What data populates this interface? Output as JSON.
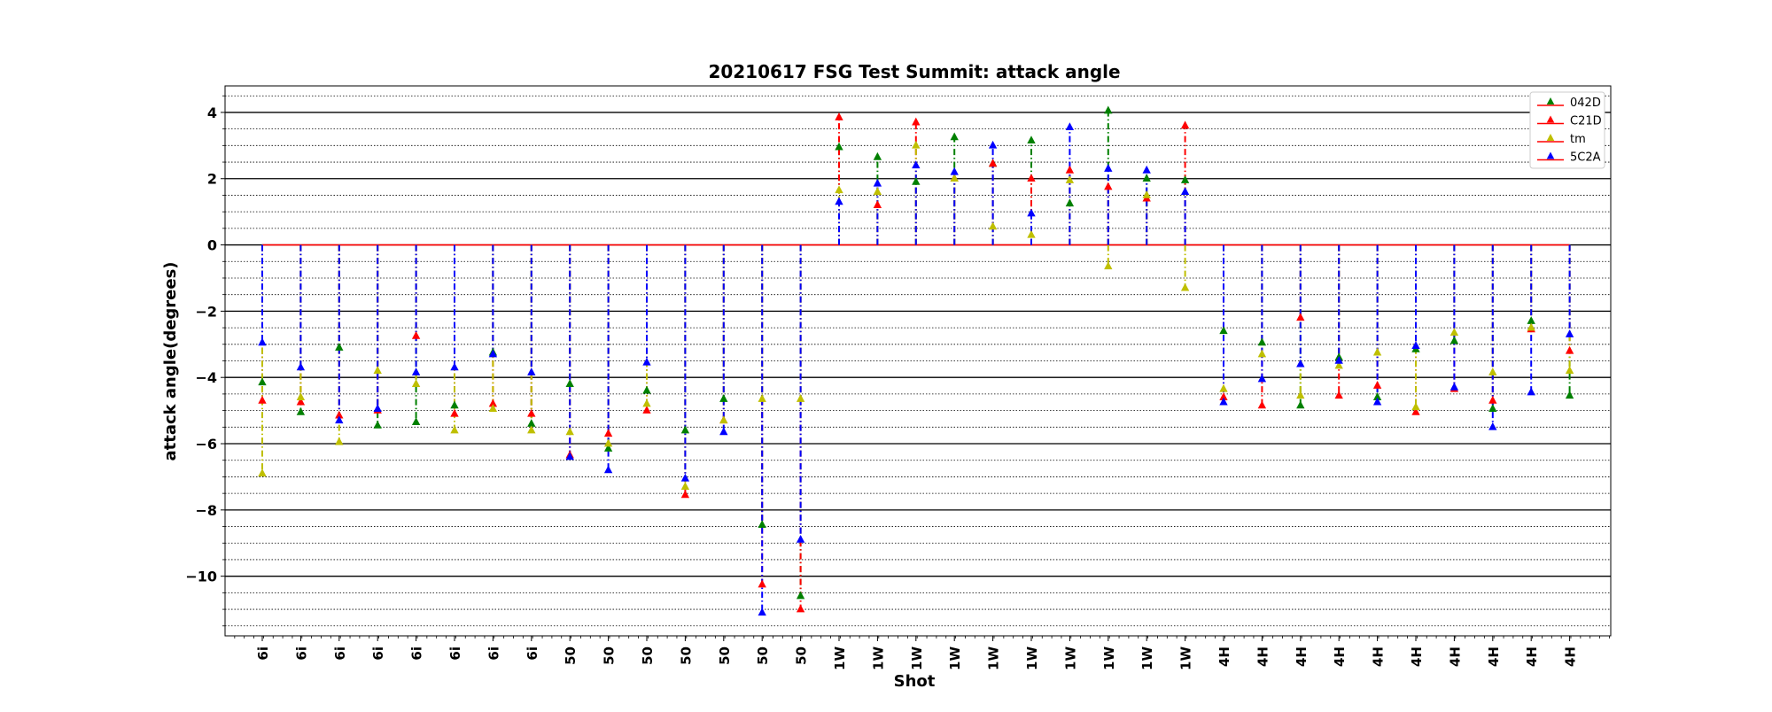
{
  "chart_data": {
    "type": "scatter",
    "title": "20210617 FSG Test Summit: attack angle",
    "xlabel": "Shot",
    "ylabel": "attack angle(degrees)",
    "categories": [
      "6i",
      "6i",
      "6i",
      "6i",
      "6i",
      "6i",
      "6i",
      "6i",
      "50",
      "50",
      "50",
      "50",
      "50",
      "50",
      "50",
      "1W",
      "1W",
      "1W",
      "1W",
      "1W",
      "1W",
      "1W",
      "1W",
      "1W",
      "1W",
      "4H",
      "4H",
      "4H",
      "4H",
      "4H",
      "4H",
      "4H",
      "4H",
      "4H",
      "4H"
    ],
    "yticks": [
      4,
      2,
      0,
      -2,
      -4,
      -6,
      -8,
      -10
    ],
    "ylim": [
      -11.8,
      4.8
    ],
    "grid": {
      "major": true,
      "minor": true
    },
    "legend_position": "top-right",
    "series": [
      {
        "name": "042D",
        "color": "#008000",
        "values": [
          -4.15,
          -5.05,
          -3.1,
          -5.45,
          -5.35,
          -4.85,
          -3.25,
          -5.4,
          -4.2,
          -6.15,
          -4.4,
          -5.6,
          -4.65,
          -8.45,
          -10.6,
          2.95,
          2.65,
          1.9,
          3.25,
          2.45,
          3.15,
          1.25,
          4.05,
          2.0,
          1.95,
          -2.6,
          -2.95,
          -4.85,
          -3.4,
          -4.6,
          -3.15,
          -2.9,
          -4.95,
          -2.3,
          -4.55
        ]
      },
      {
        "name": "C21D",
        "color": "#ff0000",
        "values": [
          -4.7,
          -4.75,
          -5.15,
          -5.0,
          -2.75,
          -5.1,
          -4.8,
          -5.1,
          -6.35,
          -5.7,
          -5.0,
          -7.55,
          -5.3,
          -10.25,
          -11.0,
          3.85,
          1.2,
          3.7,
          2.0,
          2.45,
          2.0,
          2.25,
          1.75,
          1.4,
          3.6,
          -4.6,
          -4.85,
          -2.2,
          -4.55,
          -4.25,
          -5.05,
          -4.35,
          -4.7,
          -2.55,
          -3.2
        ]
      },
      {
        "name": "tm",
        "color": "#bfbf00",
        "values": [
          -6.9,
          -4.6,
          -5.95,
          -3.8,
          -4.2,
          -5.6,
          -4.95,
          -5.6,
          -5.65,
          -6.0,
          -4.8,
          -7.3,
          -5.3,
          -4.65,
          -4.65,
          1.65,
          1.6,
          3.0,
          2.0,
          0.55,
          0.3,
          1.95,
          -0.65,
          1.5,
          -1.3,
          -4.35,
          -3.3,
          -4.55,
          -3.65,
          -3.25,
          -4.9,
          -2.65,
          -3.85,
          -2.5,
          -3.8
        ]
      },
      {
        "name": "5C2A",
        "color": "#0000ff",
        "values": [
          -2.95,
          -3.7,
          -5.3,
          -4.95,
          -3.85,
          -3.7,
          -3.3,
          -3.85,
          -6.4,
          -6.8,
          -3.55,
          -7.05,
          -5.65,
          -11.1,
          -8.9,
          1.3,
          1.85,
          2.4,
          2.2,
          3.0,
          0.95,
          3.55,
          2.3,
          2.25,
          1.6,
          -4.75,
          -4.05,
          -3.6,
          -3.5,
          -4.75,
          -3.05,
          -4.3,
          -5.5,
          -4.45,
          -2.7
        ]
      }
    ]
  }
}
